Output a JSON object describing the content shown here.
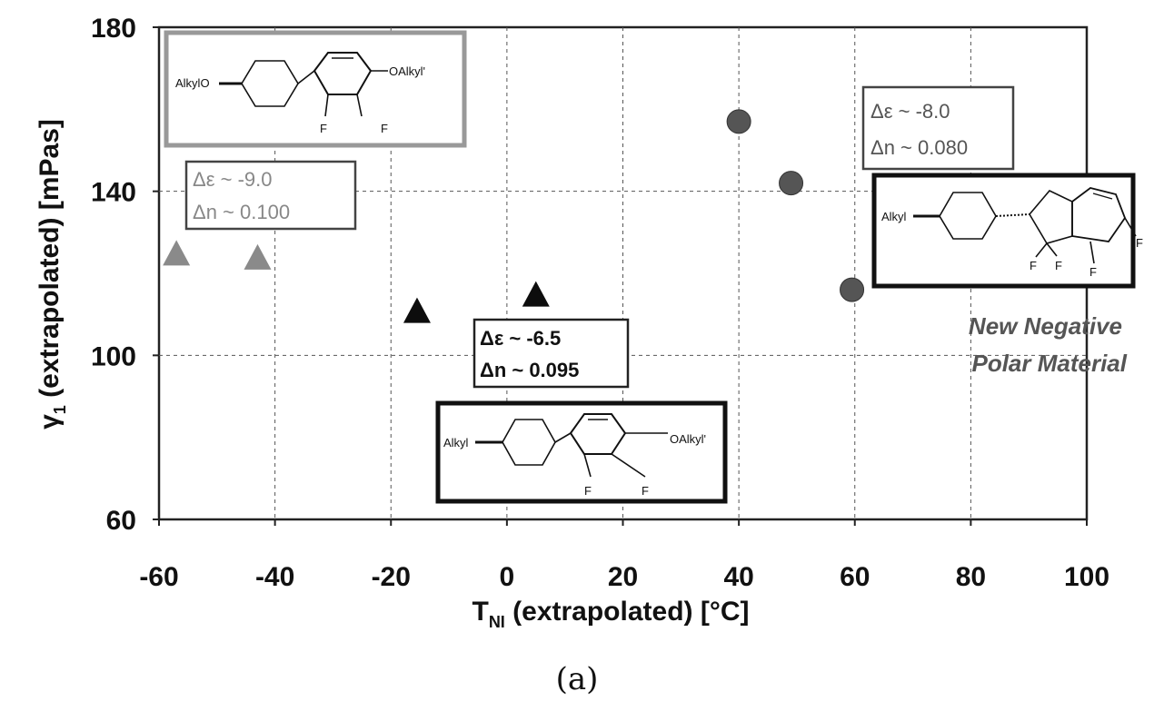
{
  "chart_data": {
    "type": "scatter",
    "title": "",
    "xlabel_main": "T",
    "xlabel_sub": "NI",
    "xlabel_rest": " (extrapolated) [°C]",
    "ylabel_main": "γ",
    "ylabel_sub": "1",
    "ylabel_rest": " (extrapolated) [mPas]",
    "xlim": [
      -60,
      100
    ],
    "ylim": [
      60,
      180
    ],
    "x_ticks": [
      "-60",
      "-40",
      "-20",
      "0",
      "20",
      "40",
      "60",
      "80",
      "100"
    ],
    "y_ticks": [
      "60",
      "100",
      "140",
      "180"
    ],
    "grid": true,
    "series": [
      {
        "marker": "triangle",
        "color": "#8a8a8a",
        "points": [
          {
            "x": -57,
            "y": 125
          },
          {
            "x": -43,
            "y": 124
          }
        ]
      },
      {
        "marker": "triangle",
        "color": "#0d0d0d",
        "points": [
          {
            "x": -15.5,
            "y": 111
          },
          {
            "x": 5,
            "y": 115
          }
        ]
      },
      {
        "marker": "circle",
        "color": "#555555",
        "points": [
          {
            "x": 40,
            "y": 157
          },
          {
            "x": 49,
            "y": 142
          },
          {
            "x": 59.5,
            "y": 116
          }
        ]
      }
    ],
    "annotations": [
      {
        "id": "gray",
        "line1": "Δε ~ -9.0",
        "line2": "Δn ~ 0.100"
      },
      {
        "id": "black",
        "line1": "Δε ~ -6.5",
        "line2": "Δn ~ 0.095"
      },
      {
        "id": "circle",
        "line1": "Δε ~ -8.0",
        "line2": "Δn ~ 0.080"
      }
    ],
    "structures": {
      "top_left": {
        "left": "AlkylO",
        "right": "OAlkyl'",
        "f1": "F",
        "f2": "F"
      },
      "bottom": {
        "left": "Alkyl",
        "right": "OAlkyl'",
        "f1": "F",
        "f2": "F"
      },
      "right": {
        "left": "Alkyl",
        "f1": "F",
        "f2": "F",
        "f3": "F",
        "f4": "F"
      }
    },
    "label_new_1": "New Negative",
    "label_new_2": "Polar Material"
  },
  "caption": "(a)"
}
